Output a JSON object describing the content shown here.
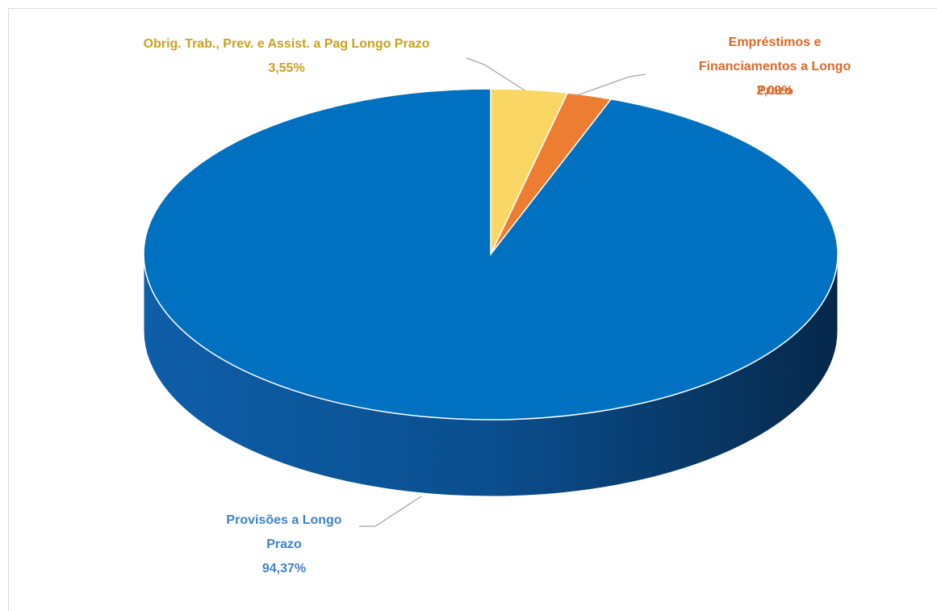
{
  "chart_data": {
    "type": "pie3d",
    "categories": [
      "Obrig. Trab., Prev. e Assist. a Pag Longo Prazo",
      "Empréstimos e\nFinanciamentos a Longo Prazo",
      "Provisões a Longo\nPrazo"
    ],
    "values": [
      3.55,
      2.09,
      94.37
    ],
    "value_labels": [
      "3,55%",
      "2,09%",
      "94,37%"
    ],
    "colors": [
      "#fad764",
      "#ed7d31",
      "#0070c0"
    ],
    "label_colors": [
      "#c9a01e",
      "#d9692b",
      "#3d82c9"
    ]
  }
}
